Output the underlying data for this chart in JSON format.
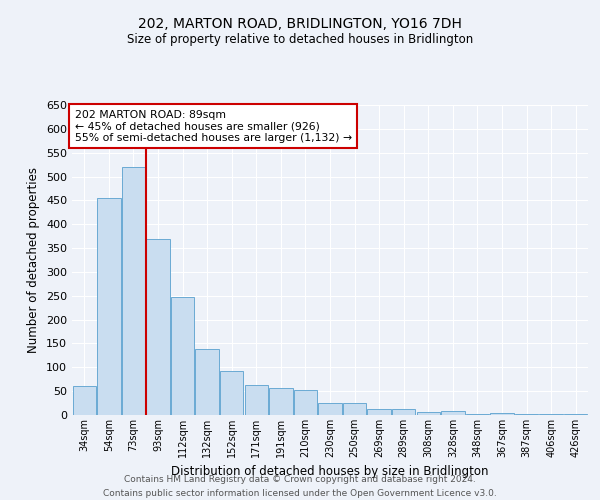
{
  "title": "202, MARTON ROAD, BRIDLINGTON, YO16 7DH",
  "subtitle": "Size of property relative to detached houses in Bridlington",
  "xlabel": "Distribution of detached houses by size in Bridlington",
  "ylabel": "Number of detached properties",
  "footer_line1": "Contains HM Land Registry data © Crown copyright and database right 2024.",
  "footer_line2": "Contains public sector information licensed under the Open Government Licence v3.0.",
  "categories": [
    "34sqm",
    "54sqm",
    "73sqm",
    "93sqm",
    "112sqm",
    "132sqm",
    "152sqm",
    "171sqm",
    "191sqm",
    "210sqm",
    "230sqm",
    "250sqm",
    "269sqm",
    "289sqm",
    "308sqm",
    "328sqm",
    "348sqm",
    "367sqm",
    "387sqm",
    "406sqm",
    "426sqm"
  ],
  "values": [
    60,
    455,
    520,
    368,
    248,
    138,
    92,
    62,
    57,
    53,
    25,
    25,
    12,
    12,
    6,
    8,
    2,
    5,
    3,
    3,
    3
  ],
  "bar_color": "#c9ddf0",
  "bar_edge_color": "#6aaad4",
  "background_color": "#eef2f9",
  "grid_color": "#ffffff",
  "annotation_text_line1": "202 MARTON ROAD: 89sqm",
  "annotation_text_line2": "← 45% of detached houses are smaller (926)",
  "annotation_text_line3": "55% of semi-detached houses are larger (1,132) →",
  "annotation_box_facecolor": "#ffffff",
  "annotation_box_edgecolor": "#cc0000",
  "red_line_color": "#cc0000",
  "red_line_x": 2.5,
  "ylim": [
    0,
    650
  ],
  "yticks": [
    0,
    50,
    100,
    150,
    200,
    250,
    300,
    350,
    400,
    450,
    500,
    550,
    600,
    650
  ]
}
